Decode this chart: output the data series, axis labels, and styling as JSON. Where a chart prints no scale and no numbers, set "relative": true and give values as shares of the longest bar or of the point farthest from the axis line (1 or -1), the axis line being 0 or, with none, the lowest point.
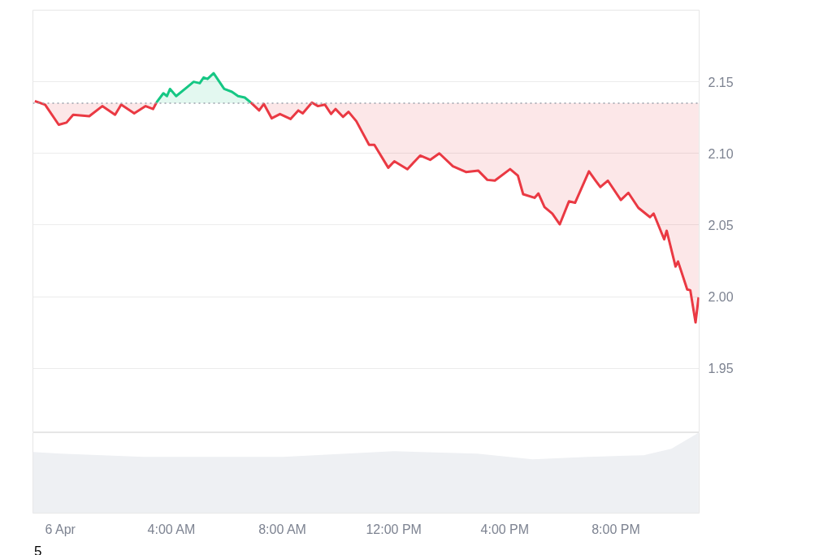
{
  "chart_data": [
    {
      "type": "line",
      "xlim": [
        -1,
        23
      ],
      "ylim": [
        1.905,
        2.2
      ],
      "yticks": [
        1.95,
        {
          "value": 2.0,
          "label": "2.00"
        },
        2.05,
        {
          "value": 2.1,
          "label": "2.10"
        },
        2.15
      ],
      "grid": "y",
      "tick_labels": "y",
      "ref_lines": [
        {
          "axis": "y",
          "value": 2.135,
          "color": "#9aa0aa",
          "line_style": "dotted"
        }
      ],
      "series": [
        {
          "color": "#ea3943",
          "x": [
            -0.93,
            -0.56,
            -0.07,
            0.21,
            0.45,
            1.03,
            1.5,
            1.96,
            2.18,
            2.65,
            3.06,
            3.33,
            3.45,
            5.0,
            6.85,
            7.15,
            7.32,
            7.6,
            7.9,
            8.28,
            8.56,
            8.72,
            9.05,
            9.27,
            9.52,
            9.74,
            9.9,
            10.17,
            10.37,
            10.65,
            11.11,
            11.3,
            11.8,
            12.02,
            12.49,
            12.95,
            13.31,
            13.64,
            14.13,
            14.6,
            15.04,
            15.37,
            15.64,
            16.19,
            16.47,
            16.66,
            17.07,
            17.21,
            17.43,
            17.71,
            17.98,
            18.31,
            18.53,
            19.03,
            19.27,
            19.44,
            19.71,
            20.18,
            20.45,
            20.81,
            21.23,
            21.36,
            21.74,
            21.83,
            22.15,
            22.24,
            22.57,
            22.68,
            22.87,
            22.98
          ],
          "values": [
            2.1365,
            2.134,
            2.12,
            2.1215,
            2.127,
            2.126,
            2.133,
            2.127,
            2.134,
            2.128,
            2.133,
            2.131,
            2.1355,
            null,
            2.1355,
            2.13,
            2.1345,
            2.1245,
            2.1275,
            2.124,
            2.13,
            2.128,
            2.1355,
            2.133,
            2.134,
            2.1275,
            2.131,
            2.1255,
            2.129,
            2.1225,
            2.106,
            2.106,
            2.09,
            2.0945,
            2.089,
            2.0985,
            2.0955,
            2.1,
            2.091,
            2.087,
            2.088,
            2.0815,
            2.081,
            2.089,
            2.0845,
            2.0715,
            2.069,
            2.072,
            2.0625,
            2.058,
            2.0505,
            2.0665,
            2.0655,
            2.0875,
            2.081,
            2.0765,
            2.081,
            2.0675,
            2.0725,
            2.062,
            2.0555,
            2.058,
            2.04,
            2.046,
            2.021,
            2.0245,
            2.005,
            2.0045,
            1.982,
            1.9995
          ]
        },
        {
          "color": "#16c784",
          "x": [
            3.45,
            3.7,
            3.83,
            3.94,
            4.16,
            4.57,
            4.79,
            5.01,
            5.15,
            5.29,
            5.51,
            5.89,
            6.17,
            6.39,
            6.63,
            6.85
          ],
          "values": [
            2.1355,
            2.142,
            2.14,
            2.145,
            2.14,
            2.1465,
            2.15,
            2.149,
            2.153,
            2.152,
            2.156,
            2.145,
            2.143,
            2.14,
            2.139,
            2.1355
          ]
        }
      ]
    },
    {
      "type": "area",
      "relative": true,
      "xlim": [
        -1,
        23
      ],
      "xticks": [
        {
          "value": 0,
          "label": "6 Apr"
        },
        {
          "value": 4,
          "label": "4:00 AM"
        },
        {
          "value": 8,
          "label": "8:00 AM"
        },
        {
          "value": 12,
          "label": "12:00 PM"
        },
        {
          "value": 16,
          "label": "4:00 PM"
        },
        {
          "value": 20,
          "label": "8:00 PM"
        }
      ],
      "x": [
        -1,
        0,
        3,
        8,
        12,
        15,
        17,
        19,
        21,
        22,
        22.98
      ],
      "series": [
        {
          "color": "#eef0f3",
          "values": [
            0.76,
            0.74,
            0.7,
            0.7,
            0.77,
            0.74,
            0.67,
            0.7,
            0.72,
            0.8,
            1.0
          ]
        }
      ],
      "annotations": [
        "5"
      ]
    }
  ]
}
